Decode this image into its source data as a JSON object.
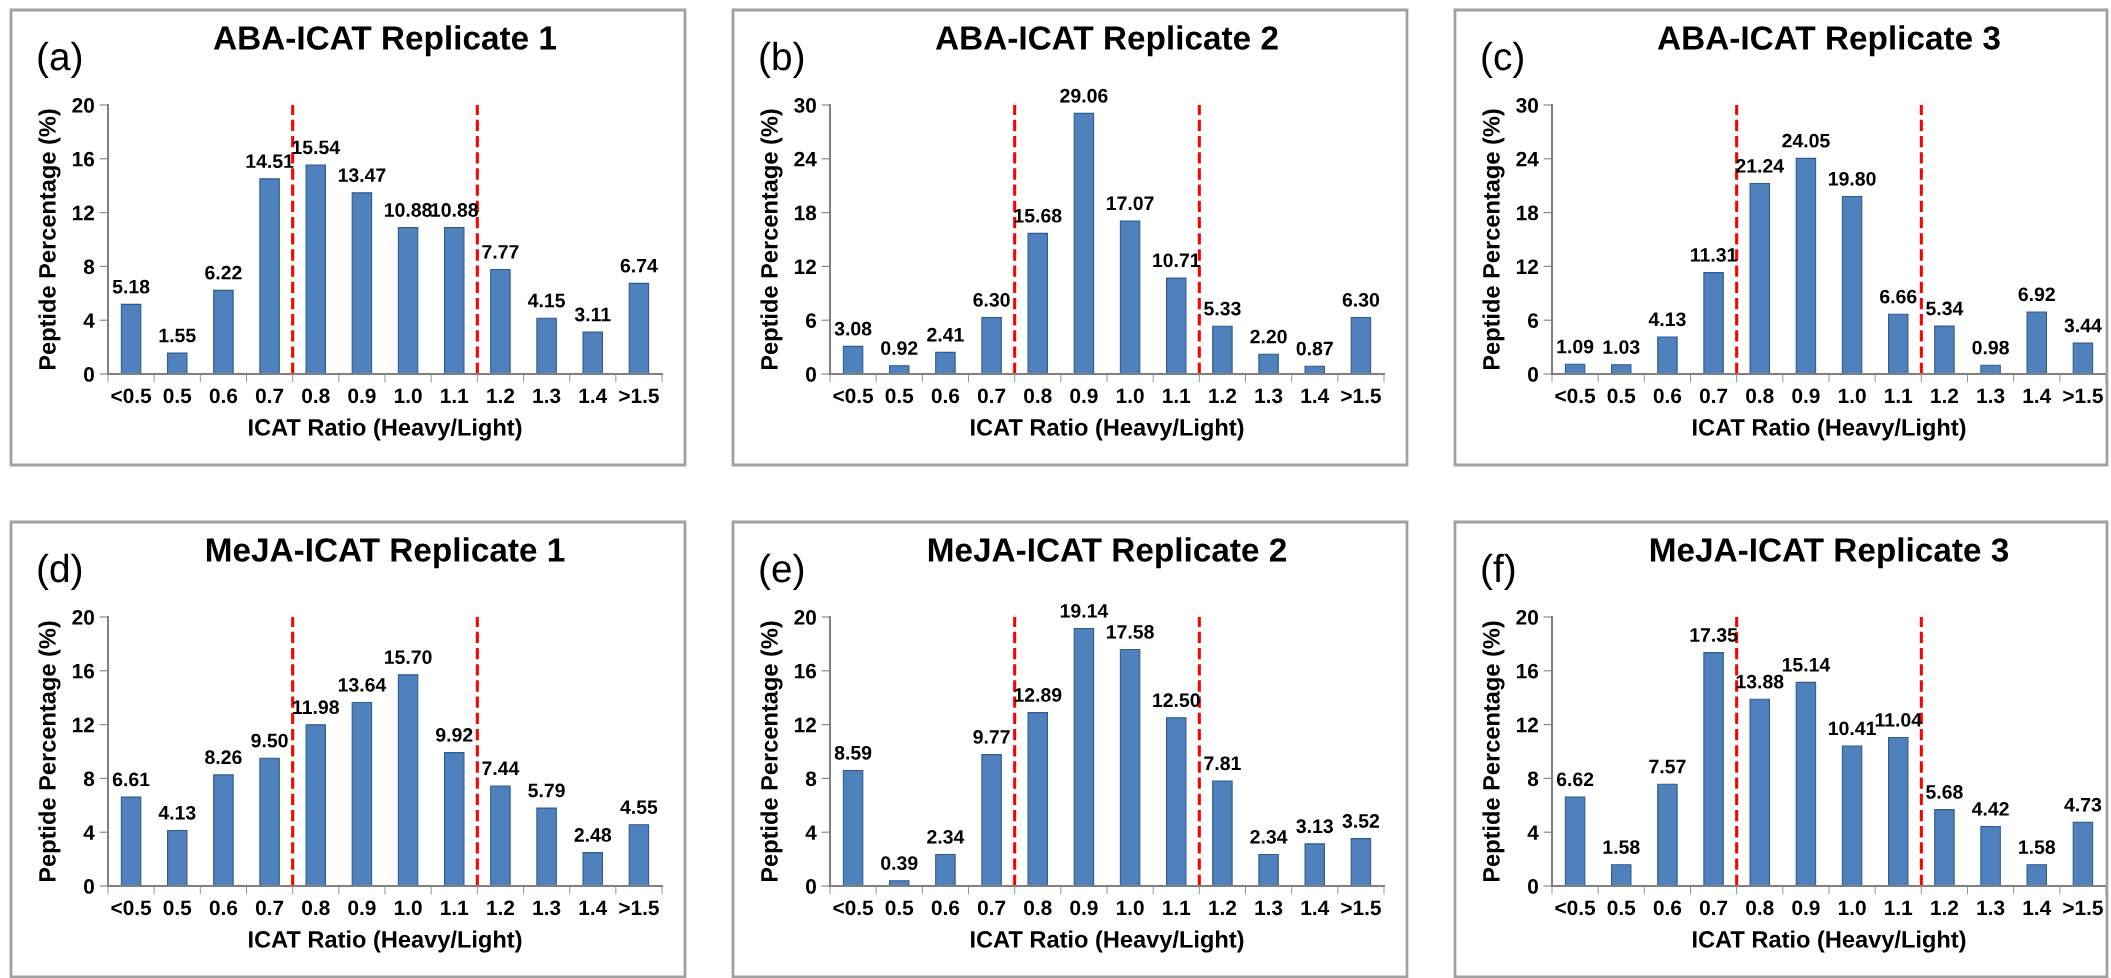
{
  "chart_data": [
    {
      "type": "bar",
      "title": "ABA-ICAT Replicate 1",
      "annotations": [
        "(a)"
      ],
      "xlabel": "ICAT Ratio (Heavy/Light)",
      "ylabel": "Peptide Percentage (%)",
      "categories": [
        "<0.5",
        "0.5",
        "0.6",
        "0.7",
        "0.8",
        "0.9",
        "1.0",
        "1.1",
        "1.2",
        "1.3",
        "1.4",
        ">1.5"
      ],
      "color": "#4f81bd",
      "values": [
        5.18,
        1.55,
        6.22,
        14.51,
        15.54,
        13.47,
        10.88,
        10.88,
        7.77,
        4.15,
        3.11,
        6.74
      ],
      "value_labels": [
        "5.18",
        "1.55",
        "6.22",
        "14.51",
        "15.54",
        "13.47",
        "10.88",
        "10.88",
        "7.77",
        "4.15",
        "3.11",
        "6.74"
      ],
      "ylim": [
        0,
        20
      ],
      "yticks": [
        0,
        4,
        8,
        12,
        16,
        20
      ]
    },
    {
      "type": "bar",
      "title": "ABA-ICAT Replicate 2",
      "annotations": [
        "(b)"
      ],
      "xlabel": "ICAT Ratio (Heavy/Light)",
      "ylabel": "Peptide Percentage (%)",
      "categories": [
        "<0.5",
        "0.5",
        "0.6",
        "0.7",
        "0.8",
        "0.9",
        "1.0",
        "1.1",
        "1.2",
        "1.3",
        "1.4",
        ">1.5"
      ],
      "color": "#4f81bd",
      "values": [
        3.08,
        0.92,
        2.41,
        6.3,
        15.68,
        29.06,
        17.07,
        10.71,
        5.33,
        2.2,
        0.87,
        6.3
      ],
      "value_labels": [
        "3.08",
        "0.92",
        "2.41",
        "6.30",
        "15.68",
        "29.06",
        "17.07",
        "10.71",
        "5.33",
        "2.20",
        "0.87",
        "6.30"
      ],
      "ylim": [
        0,
        30
      ],
      "yticks": [
        0,
        6,
        12,
        18,
        24,
        30
      ]
    },
    {
      "type": "bar",
      "title": "ABA-ICAT Replicate 3",
      "annotations": [
        "(c)"
      ],
      "xlabel": "ICAT Ratio (Heavy/Light)",
      "ylabel": "Peptide Percentage (%)",
      "categories": [
        "<0.5",
        "0.5",
        "0.6",
        "0.7",
        "0.8",
        "0.9",
        "1.0",
        "1.1",
        "1.2",
        "1.3",
        "1.4",
        ">1.5"
      ],
      "color": "#4f81bd",
      "values": [
        1.09,
        1.03,
        4.13,
        11.31,
        21.24,
        24.05,
        19.8,
        6.66,
        5.34,
        0.98,
        6.92,
        3.44
      ],
      "value_labels": [
        "1.09",
        "1.03",
        "4.13",
        "11.31",
        "21.24",
        "24.05",
        "19.80",
        "6.66",
        "5.34",
        "0.98",
        "6.92",
        "3.44"
      ],
      "ylim": [
        0,
        30
      ],
      "yticks": [
        0,
        6,
        12,
        18,
        24,
        30
      ]
    },
    {
      "type": "bar",
      "title": "MeJA-ICAT Replicate 1",
      "annotations": [
        "(d)"
      ],
      "xlabel": "ICAT Ratio (Heavy/Light)",
      "ylabel": "Peptide Percentage (%)",
      "categories": [
        "<0.5",
        "0.5",
        "0.6",
        "0.7",
        "0.8",
        "0.9",
        "1.0",
        "1.1",
        "1.2",
        "1.3",
        "1.4",
        ">1.5"
      ],
      "color": "#4f81bd",
      "values": [
        6.61,
        4.13,
        8.26,
        9.5,
        11.98,
        13.64,
        15.7,
        9.92,
        7.44,
        5.79,
        2.48,
        4.55
      ],
      "value_labels": [
        "6.61",
        "4.13",
        "8.26",
        "9.50",
        "11.98",
        "13.64",
        "15.70",
        "9.92",
        "7.44",
        "5.79",
        "2.48",
        "4.55"
      ],
      "ylim": [
        0,
        20
      ],
      "yticks": [
        0,
        4,
        8,
        12,
        16,
        20
      ]
    },
    {
      "type": "bar",
      "title": "MeJA-ICAT Replicate 2",
      "annotations": [
        "(e)"
      ],
      "xlabel": "ICAT Ratio (Heavy/Light)",
      "ylabel": "Peptide Percentage (%)",
      "categories": [
        "<0.5",
        "0.5",
        "0.6",
        "0.7",
        "0.8",
        "0.9",
        "1.0",
        "1.1",
        "1.2",
        "1.3",
        "1.4",
        ">1.5"
      ],
      "color": "#4f81bd",
      "values": [
        8.59,
        0.39,
        2.34,
        9.77,
        12.89,
        19.14,
        17.58,
        12.5,
        7.81,
        2.34,
        3.13,
        3.52
      ],
      "value_labels": [
        "8.59",
        "0.39",
        "2.34",
        "9.77",
        "12.89",
        "19.14",
        "17.58",
        "12.50",
        "7.81",
        "2.34",
        "3.13",
        "3.52"
      ],
      "ylim": [
        0,
        20
      ],
      "yticks": [
        0,
        4,
        8,
        12,
        16,
        20
      ]
    },
    {
      "type": "bar",
      "title": "MeJA-ICAT Replicate 3",
      "annotations": [
        "(f)"
      ],
      "xlabel": "ICAT Ratio (Heavy/Light)",
      "ylabel": "Peptide Percentage (%)",
      "categories": [
        "<0.5",
        "0.5",
        "0.6",
        "0.7",
        "0.8",
        "0.9",
        "1.0",
        "1.1",
        "1.2",
        "1.3",
        "1.4",
        ">1.5"
      ],
      "color": "#4f81bd",
      "values": [
        6.62,
        1.58,
        7.57,
        17.35,
        13.88,
        15.14,
        10.41,
        11.04,
        5.68,
        4.42,
        1.58,
        4.73
      ],
      "value_labels": [
        "6.62",
        "1.58",
        "7.57",
        "17.35",
        "13.88",
        "15.14",
        "10.41",
        "11.04",
        "5.68",
        "4.42",
        "1.58",
        "4.73"
      ],
      "ylim": [
        0,
        20
      ],
      "yticks": [
        0,
        4,
        8,
        12,
        16,
        20
      ]
    }
  ]
}
